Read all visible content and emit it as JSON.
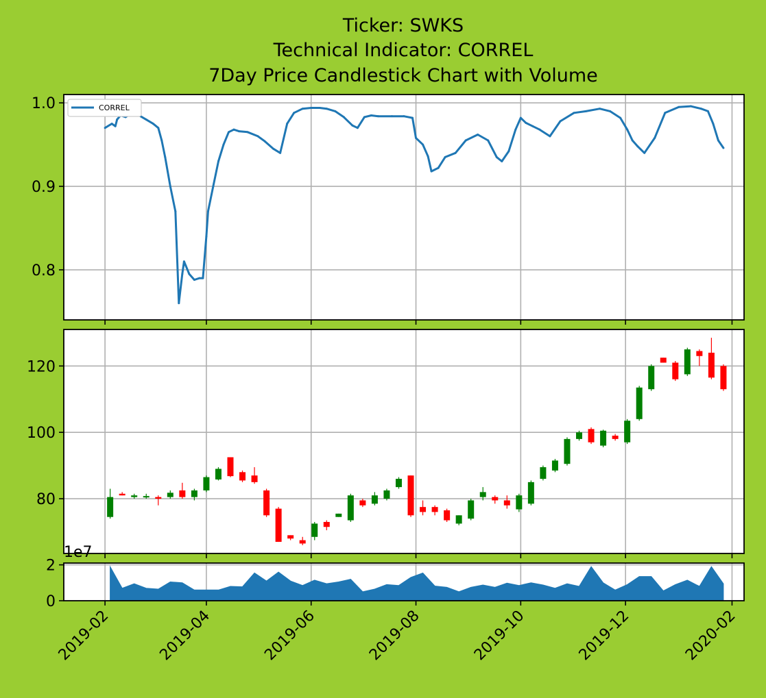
{
  "title_lines": [
    "Ticker: SWKS",
    "Technical Indicator: CORREL",
    "7Day Price Candlestick Chart with Volume"
  ],
  "colors": {
    "background": "#9acd32",
    "line": "#1f77b4",
    "volume": "#1f77b4",
    "up": "#008000",
    "down": "#ff0000",
    "grid": "#b0b0b0"
  },
  "x_axis": {
    "min": "2019-01-08",
    "max": "2020-02-08",
    "ticks": [
      "2019-02-01",
      "2019-04-01",
      "2019-06-01",
      "2019-08-01",
      "2019-10-01",
      "2019-12-01",
      "2020-02-01"
    ],
    "tick_labels": [
      "2019-02",
      "2019-04",
      "2019-06",
      "2019-08",
      "2019-10",
      "2019-12",
      "2020-02"
    ]
  },
  "chart_data": [
    {
      "type": "line",
      "panel": "indicator",
      "legend": "CORREL",
      "legend_position": "top-left",
      "grid": true,
      "ylim": [
        0.74,
        1.01
      ],
      "yticks": [
        0.8,
        0.9,
        1.0
      ],
      "ytick_labels": [
        "0.8",
        "0.9",
        "1.0"
      ],
      "series": [
        {
          "name": "CORREL",
          "x": [
            "2019-02-01",
            "2019-02-05",
            "2019-02-07",
            "2019-02-08",
            "2019-02-10",
            "2019-02-13",
            "2019-02-16",
            "2019-02-20",
            "2019-02-25",
            "2019-03-01",
            "2019-03-04",
            "2019-03-06",
            "2019-03-08",
            "2019-03-11",
            "2019-03-14",
            "2019-03-16",
            "2019-03-18",
            "2019-03-19",
            "2019-03-20",
            "2019-03-22",
            "2019-03-25",
            "2019-03-28",
            "2019-03-30",
            "2019-04-01",
            "2019-04-02",
            "2019-04-05",
            "2019-04-08",
            "2019-04-11",
            "2019-04-14",
            "2019-04-17",
            "2019-04-20",
            "2019-04-25",
            "2019-05-01",
            "2019-05-05",
            "2019-05-10",
            "2019-05-14",
            "2019-05-18",
            "2019-05-22",
            "2019-05-27",
            "2019-06-01",
            "2019-06-06",
            "2019-06-10",
            "2019-06-15",
            "2019-06-20",
            "2019-06-25",
            "2019-06-28",
            "2019-07-02",
            "2019-07-06",
            "2019-07-10",
            "2019-07-18",
            "2019-07-25",
            "2019-07-30",
            "2019-08-01",
            "2019-08-05",
            "2019-08-08",
            "2019-08-10",
            "2019-08-14",
            "2019-08-18",
            "2019-08-24",
            "2019-08-30",
            "2019-09-06",
            "2019-09-12",
            "2019-09-17",
            "2019-09-20",
            "2019-09-24",
            "2019-09-28",
            "2019-10-01",
            "2019-10-04",
            "2019-10-08",
            "2019-10-12",
            "2019-10-18",
            "2019-10-24",
            "2019-11-01",
            "2019-11-08",
            "2019-11-16",
            "2019-11-22",
            "2019-11-28",
            "2019-12-02",
            "2019-12-05",
            "2019-12-08",
            "2019-12-12",
            "2019-12-18",
            "2019-12-24",
            "2020-01-01",
            "2020-01-08",
            "2020-01-14",
            "2020-01-18",
            "2020-01-21",
            "2020-01-24",
            "2020-01-27"
          ],
          "values": [
            0.97,
            0.975,
            0.972,
            0.98,
            0.985,
            0.983,
            0.987,
            0.986,
            0.98,
            0.975,
            0.97,
            0.955,
            0.935,
            0.9,
            0.87,
            0.76,
            0.795,
            0.81,
            0.805,
            0.795,
            0.788,
            0.79,
            0.79,
            0.84,
            0.87,
            0.9,
            0.93,
            0.95,
            0.965,
            0.968,
            0.966,
            0.965,
            0.96,
            0.954,
            0.945,
            0.94,
            0.975,
            0.988,
            0.993,
            0.994,
            0.994,
            0.993,
            0.99,
            0.983,
            0.973,
            0.97,
            0.983,
            0.985,
            0.984,
            0.984,
            0.984,
            0.982,
            0.958,
            0.95,
            0.936,
            0.918,
            0.922,
            0.935,
            0.94,
            0.955,
            0.962,
            0.955,
            0.935,
            0.93,
            0.942,
            0.968,
            0.982,
            0.976,
            0.972,
            0.968,
            0.96,
            0.978,
            0.988,
            0.99,
            0.993,
            0.99,
            0.982,
            0.968,
            0.955,
            0.948,
            0.94,
            0.958,
            0.988,
            0.995,
            0.996,
            0.993,
            0.99,
            0.975,
            0.955,
            0.946
          ]
        }
      ]
    },
    {
      "type": "candlestick",
      "panel": "price",
      "grid": true,
      "ylim": [
        63.5,
        131
      ],
      "yticks": [
        80,
        100,
        120
      ],
      "ytick_labels": [
        "80",
        "100",
        "120"
      ],
      "x": [
        "2019-02-04",
        "2019-02-11",
        "2019-02-18",
        "2019-02-25",
        "2019-03-04",
        "2019-03-11",
        "2019-03-18",
        "2019-03-25",
        "2019-04-01",
        "2019-04-08",
        "2019-04-15",
        "2019-04-22",
        "2019-04-29",
        "2019-05-06",
        "2019-05-13",
        "2019-05-20",
        "2019-05-27",
        "2019-06-03",
        "2019-06-10",
        "2019-06-17",
        "2019-06-24",
        "2019-07-01",
        "2019-07-08",
        "2019-07-15",
        "2019-07-22",
        "2019-07-29",
        "2019-08-05",
        "2019-08-12",
        "2019-08-19",
        "2019-08-26",
        "2019-09-02",
        "2019-09-09",
        "2019-09-16",
        "2019-09-23",
        "2019-09-30",
        "2019-10-07",
        "2019-10-14",
        "2019-10-21",
        "2019-10-28",
        "2019-11-04",
        "2019-11-11",
        "2019-11-18",
        "2019-11-25",
        "2019-12-02",
        "2019-12-09",
        "2019-12-16",
        "2019-12-23",
        "2019-12-30",
        "2020-01-06",
        "2020-01-13",
        "2020-01-20",
        "2020-01-27"
      ],
      "open": [
        74.5,
        81.5,
        80.5,
        80.5,
        80.5,
        80.5,
        82.5,
        80.5,
        82.5,
        85.8,
        92.5,
        88.0,
        87.0,
        82.5,
        77.0,
        69.0,
        67.5,
        68.5,
        73.0,
        74.5,
        73.5,
        79.5,
        78.5,
        80.0,
        83.5,
        87.0,
        77.5,
        77.5,
        76.5,
        72.5,
        74.0,
        80.5,
        80.5,
        79.5,
        76.8,
        78.5,
        86.0,
        88.5,
        90.5,
        98.0,
        101.0,
        96.0,
        99.0,
        97.0,
        104.0,
        113.0,
        122.5,
        121.0,
        117.5,
        124.5,
        124.0,
        120.0
      ],
      "close": [
        80.5,
        81.0,
        81.0,
        80.8,
        80.0,
        81.8,
        80.5,
        82.5,
        86.5,
        89.0,
        86.8,
        85.5,
        85.0,
        75.0,
        67.0,
        68.0,
        66.5,
        72.5,
        71.5,
        75.5,
        81.0,
        78.0,
        81.0,
        82.5,
        86.0,
        75.0,
        76.0,
        76.0,
        73.5,
        75.0,
        79.5,
        82.0,
        79.5,
        78.0,
        81.0,
        85.0,
        89.5,
        91.5,
        98.0,
        100.0,
        97.0,
        100.5,
        98.0,
        103.5,
        113.5,
        120.0,
        121.0,
        116.0,
        125.0,
        123.0,
        116.5,
        113.0
      ],
      "high": [
        83.0,
        82.0,
        81.5,
        81.5,
        81.0,
        82.5,
        84.8,
        83.0,
        87.0,
        89.5,
        92.5,
        88.5,
        89.5,
        83.0,
        77.5,
        69.0,
        68.5,
        73.0,
        73.5,
        75.5,
        81.5,
        80.0,
        82.0,
        83.0,
        86.5,
        87.0,
        79.5,
        78.0,
        77.0,
        75.0,
        80.0,
        83.5,
        81.0,
        81.0,
        81.5,
        85.5,
        90.0,
        92.0,
        98.5,
        100.5,
        101.5,
        100.8,
        99.5,
        104.0,
        114.0,
        120.5,
        122.5,
        121.5,
        125.5,
        125.0,
        128.5,
        120.5
      ],
      "low": [
        74.0,
        81.0,
        80.0,
        80.0,
        78.0,
        80.0,
        80.0,
        79.5,
        82.0,
        85.5,
        86.5,
        85.0,
        84.5,
        74.5,
        67.0,
        67.5,
        66.0,
        67.5,
        70.5,
        74.5,
        73.0,
        77.5,
        78.0,
        79.5,
        83.0,
        74.5,
        75.0,
        75.0,
        73.0,
        72.0,
        73.5,
        79.5,
        78.5,
        77.0,
        76.0,
        78.0,
        85.5,
        88.0,
        90.0,
        97.5,
        96.5,
        95.5,
        97.5,
        96.5,
        103.5,
        112.5,
        121.0,
        115.5,
        117.0,
        120.0,
        116.0,
        112.5
      ]
    },
    {
      "type": "area",
      "panel": "volume",
      "grid": true,
      "ylim": [
        0,
        2.1
      ],
      "offset_label": "1e7",
      "yticks": [
        0,
        2
      ],
      "ytick_labels": [
        "0",
        "2"
      ],
      "x": [
        "2019-02-04",
        "2019-02-04",
        "2019-02-11",
        "2019-02-18",
        "2019-02-25",
        "2019-03-04",
        "2019-03-11",
        "2019-03-18",
        "2019-03-25",
        "2019-04-01",
        "2019-04-08",
        "2019-04-15",
        "2019-04-22",
        "2019-04-29",
        "2019-05-06",
        "2019-05-13",
        "2019-05-20",
        "2019-05-27",
        "2019-06-03",
        "2019-06-10",
        "2019-06-17",
        "2019-06-24",
        "2019-07-01",
        "2019-07-08",
        "2019-07-15",
        "2019-07-22",
        "2019-07-29",
        "2019-08-05",
        "2019-08-12",
        "2019-08-19",
        "2019-08-26",
        "2019-09-02",
        "2019-09-09",
        "2019-09-16",
        "2019-09-23",
        "2019-09-30",
        "2019-10-07",
        "2019-10-14",
        "2019-10-21",
        "2019-10-28",
        "2019-11-04",
        "2019-11-11",
        "2019-11-18",
        "2019-11-25",
        "2019-12-02",
        "2019-12-09",
        "2019-12-16",
        "2019-12-23",
        "2019-12-30",
        "2020-01-06",
        "2020-01-13",
        "2020-01-20",
        "2020-01-27",
        "2020-01-27"
      ],
      "values": [
        0,
        1.9,
        0.7,
        0.95,
        0.7,
        0.65,
        1.05,
        1.0,
        0.6,
        0.6,
        0.6,
        0.8,
        0.78,
        1.55,
        1.1,
        1.6,
        1.1,
        0.85,
        1.15,
        0.95,
        1.05,
        1.2,
        0.5,
        0.65,
        0.9,
        0.85,
        1.3,
        1.55,
        0.82,
        0.75,
        0.5,
        0.75,
        0.88,
        0.75,
        0.98,
        0.85,
        1.0,
        0.88,
        0.7,
        0.95,
        0.8,
        1.9,
        1.0,
        0.6,
        0.9,
        1.35,
        1.35,
        0.55,
        0.9,
        1.15,
        0.8,
        1.9,
        0.95,
        0
      ]
    }
  ]
}
